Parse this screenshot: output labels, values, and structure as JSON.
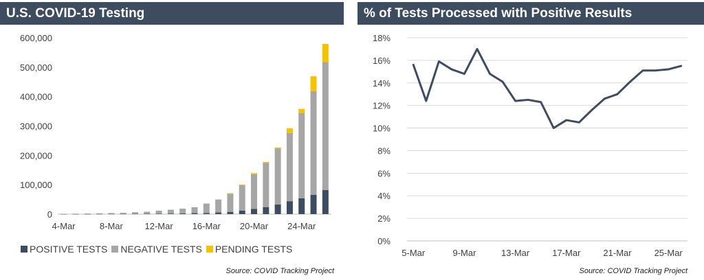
{
  "charts": [
    {
      "chart_data": {
        "type": "bar",
        "stacked": true,
        "title": "U.S. COVID-19 Testing",
        "xlabel": "",
        "ylabel": "",
        "ylim": [
          0,
          600000
        ],
        "yticks": [
          "0",
          "100,000",
          "200,000",
          "300,000",
          "400,000",
          "500,000",
          "600,000"
        ],
        "xtick_labels": [
          "4-Mar",
          "8-Mar",
          "12-Mar",
          "16-Mar",
          "20-Mar",
          "24-Mar"
        ],
        "xtick_every": 4,
        "categories": [
          "4-Mar",
          "5-Mar",
          "6-Mar",
          "7-Mar",
          "8-Mar",
          "9-Mar",
          "10-Mar",
          "11-Mar",
          "12-Mar",
          "13-Mar",
          "14-Mar",
          "15-Mar",
          "16-Mar",
          "17-Mar",
          "18-Mar",
          "19-Mar",
          "20-Mar",
          "21-Mar",
          "22-Mar",
          "23-Mar",
          "24-Mar",
          "25-Mar",
          "26-Mar"
        ],
        "series": [
          {
            "name": "POSITIVE TESTS",
            "color": "#3d4c5e",
            "values": [
              200,
              300,
              400,
              500,
              600,
              700,
              900,
              1100,
              1600,
              2000,
              2700,
              3400,
              4000,
              5700,
              7700,
              12000,
              18000,
              24000,
              33000,
              44000,
              54000,
              66000,
              82000
            ]
          },
          {
            "name": "NEGATIVE TESTS",
            "color": "#a6a6a6",
            "values": [
              1000,
              1400,
              1800,
              2400,
              3200,
              4000,
              5500,
              7000,
              10000,
              13000,
              16000,
              20000,
              32000,
              44000,
              62000,
              86000,
              118000,
              150000,
              190000,
              232000,
              290000,
              352000,
              435000
            ]
          },
          {
            "name": "PENDING TESTS",
            "color": "#f5c200",
            "values": [
              0,
              0,
              0,
              0,
              0,
              0,
              0,
              0,
              0,
              0,
              0,
              0,
              0,
              0,
              1600,
              2500,
              3500,
              3500,
              3500,
              16000,
              14000,
              51000,
              62000
            ]
          }
        ],
        "legend": "bottom",
        "grid": false
      },
      "source": "Source: COVID Tracking Project"
    },
    {
      "chart_data": {
        "type": "line",
        "title": "% of Tests Processed with Positive Results",
        "xlabel": "",
        "ylabel": "",
        "ylim": [
          0,
          18
        ],
        "yticks": [
          "0%",
          "2%",
          "4%",
          "6%",
          "8%",
          "10%",
          "12%",
          "14%",
          "16%",
          "18%"
        ],
        "xtick_labels": [
          "5-Mar",
          "9-Mar",
          "13-Mar",
          "17-Mar",
          "21-Mar",
          "25-Mar"
        ],
        "xtick_every": 4,
        "x": [
          "5-Mar",
          "6-Mar",
          "7-Mar",
          "8-Mar",
          "9-Mar",
          "10-Mar",
          "11-Mar",
          "12-Mar",
          "13-Mar",
          "14-Mar",
          "15-Mar",
          "16-Mar",
          "17-Mar",
          "18-Mar",
          "19-Mar",
          "20-Mar",
          "21-Mar",
          "22-Mar",
          "23-Mar",
          "24-Mar",
          "25-Mar",
          "26-Mar"
        ],
        "series": [
          {
            "color": "#3d4c5e",
            "values": [
              15.6,
              12.4,
              15.9,
              15.2,
              14.8,
              17.0,
              14.8,
              14.1,
              12.4,
              12.5,
              12.3,
              10.0,
              10.7,
              10.5,
              11.6,
              12.6,
              13.0,
              14.1,
              15.1,
              15.1,
              15.2,
              15.5
            ]
          }
        ],
        "grid": true
      },
      "source": "Source: COVID Tracking Project"
    }
  ]
}
